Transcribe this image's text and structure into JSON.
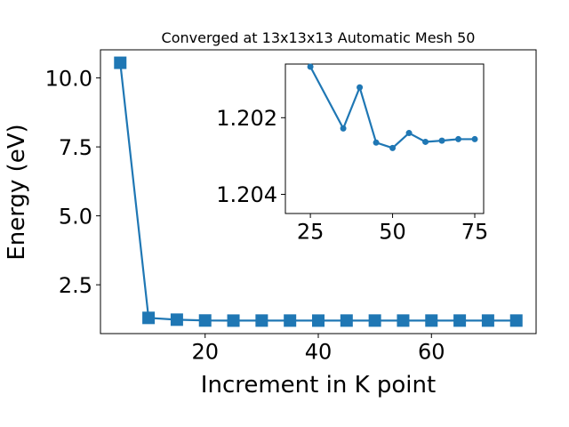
{
  "chart_data": [
    {
      "type": "line",
      "title": "Converged at 13x13x13 Automatic Mesh 50",
      "x_label": "Increment in K point",
      "y_label": "Energy (eV)",
      "x": [
        5,
        10,
        15,
        20,
        25,
        30,
        35,
        40,
        45,
        50,
        55,
        60,
        65,
        70,
        75
      ],
      "values": [
        10.55,
        1.3,
        1.235,
        1.205,
        1.20067,
        1.2025,
        1.20228,
        1.20121,
        1.20265,
        1.20279,
        1.2024,
        1.20263,
        1.2026,
        1.20256,
        1.20256
      ],
      "color": "#1f77b4",
      "marker": "square",
      "xlim": [
        1.5,
        78.5
      ],
      "ylim": [
        0.73,
        11.02
      ],
      "xticks": [
        20,
        40,
        60
      ],
      "yticks": [
        {
          "value": 2.5,
          "label": "2.5"
        },
        {
          "value": 5,
          "label": "5.0"
        },
        {
          "value": 7.5,
          "label": "7.5"
        },
        {
          "value": 10,
          "label": "10.0"
        }
      ]
    },
    {
      "type": "line",
      "x": [
        25,
        35,
        40,
        45,
        50,
        55,
        60,
        65,
        70,
        75
      ],
      "values": [
        1.20067,
        1.20228,
        1.20121,
        1.20265,
        1.20279,
        1.2024,
        1.20263,
        1.2026,
        1.20256,
        1.20256
      ],
      "color": "#1f77b4",
      "marker": "circle",
      "xlim": [
        17.4,
        77.7
      ],
      "ylim": [
        1.2045,
        1.2006
      ],
      "xticks": [
        25,
        50,
        75
      ],
      "yticks": [
        1.202,
        1.204
      ]
    }
  ]
}
